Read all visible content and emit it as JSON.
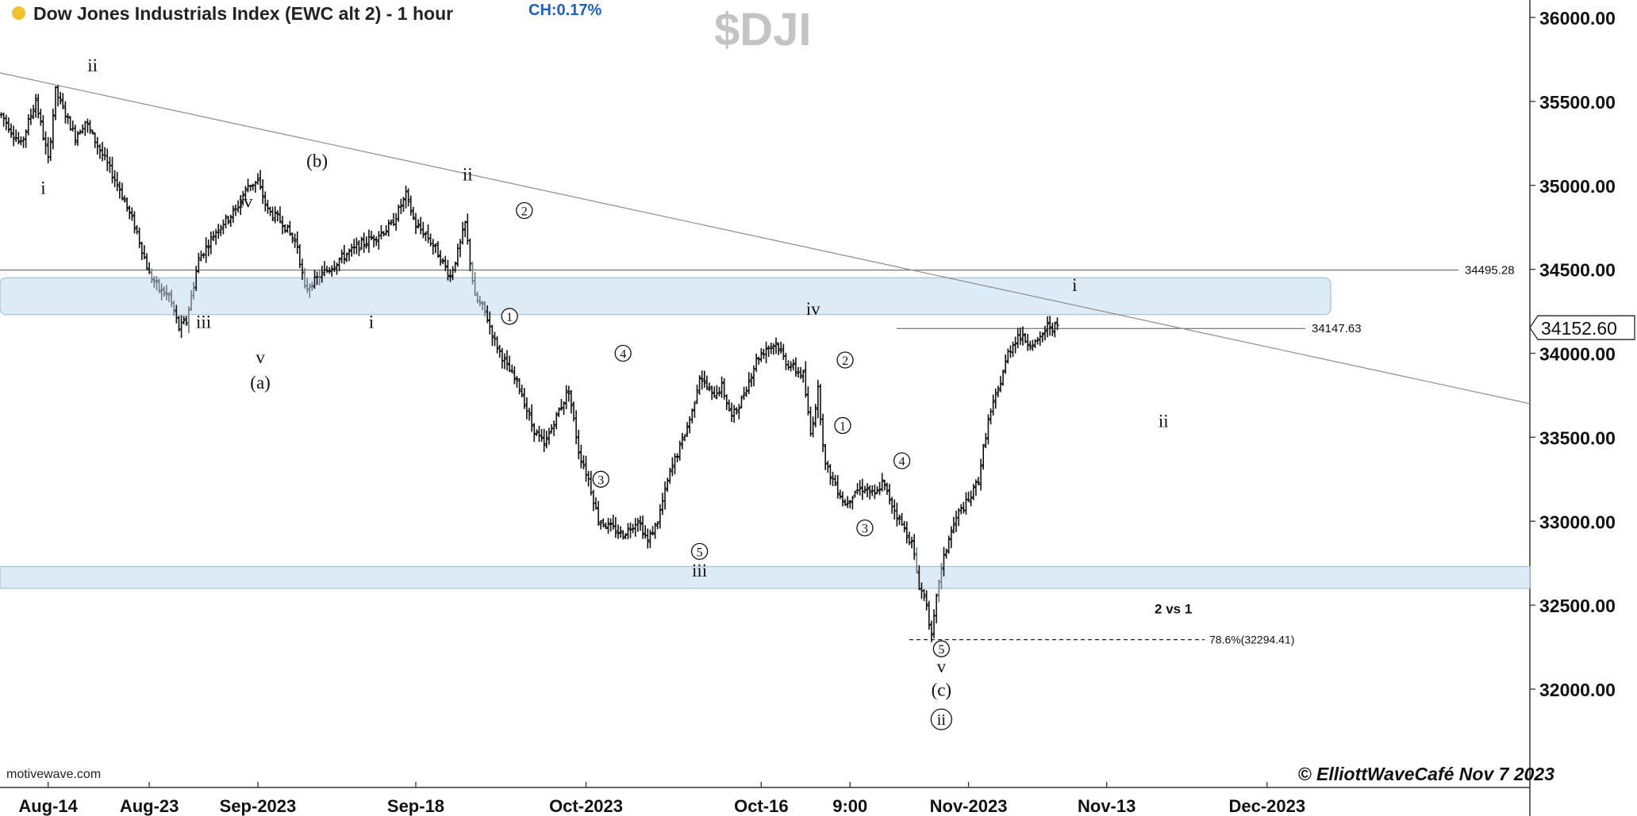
{
  "header": {
    "title": "Dow Jones Industrials Index (EWC alt 2) - 1 hour",
    "change": "CH:0.17%",
    "symbol": "$DJI",
    "source": "motivewave.com",
    "copyright": "© ElliottWaveCafé Nov 7 2023"
  },
  "colors": {
    "bars": "#111111",
    "zone_fill": "#dcebf6",
    "zone_border": "#9fb6c8",
    "trendline": "#8c8c8c",
    "indicator_dot": "#f2c12e",
    "change_text": "#1a5fc4",
    "watermark": "#c4c4c4"
  },
  "chart_data": {
    "type": "ohlc",
    "timeframe": "1 hour",
    "ylim": [
      31400,
      36100
    ],
    "y_ticks": [
      32000,
      32500,
      33000,
      33500,
      34000,
      34500,
      35000,
      35500,
      36000
    ],
    "y_tick_labels": [
      "32000.00",
      "32500.00",
      "33000.00",
      "33500.00",
      "34000.00",
      "34500.00",
      "35000.00",
      "35500.00",
      "36000.00"
    ],
    "x_labels": [
      "Aug-14",
      "Aug-23",
      "Sep-2023",
      "Sep-18",
      "Oct-2023",
      "Oct-16",
      "9:00",
      "Nov-2023",
      "Nov-13",
      "Dec-2023"
    ],
    "x_label_bar_index": [
      19,
      60,
      104,
      168,
      237,
      308,
      344,
      392,
      448,
      513
    ],
    "total_bar_slots": 620,
    "last_price": "34152.60",
    "price_path": [
      [
        0,
        35420
      ],
      [
        8,
        35240
      ],
      [
        14,
        35510
      ],
      [
        19,
        35150
      ],
      [
        22,
        35560
      ],
      [
        30,
        35290
      ],
      [
        34,
        35380
      ],
      [
        40,
        35210
      ],
      [
        48,
        34980
      ],
      [
        55,
        34720
      ],
      [
        60,
        34470
      ],
      [
        64,
        34380
      ],
      [
        68,
        34340
      ],
      [
        72,
        34150
      ],
      [
        75,
        34190
      ],
      [
        80,
        34560
      ],
      [
        88,
        34750
      ],
      [
        95,
        34850
      ],
      [
        100,
        35000
      ],
      [
        104,
        35020
      ],
      [
        108,
        34850
      ],
      [
        114,
        34780
      ],
      [
        120,
        34640
      ],
      [
        123,
        34380
      ],
      [
        130,
        34470
      ],
      [
        138,
        34570
      ],
      [
        146,
        34650
      ],
      [
        152,
        34700
      ],
      [
        158,
        34760
      ],
      [
        164,
        34940
      ],
      [
        168,
        34760
      ],
      [
        172,
        34710
      ],
      [
        176,
        34620
      ],
      [
        182,
        34460
      ],
      [
        186,
        34650
      ],
      [
        188,
        34770
      ],
      [
        192,
        34330
      ],
      [
        196,
        34250
      ],
      [
        200,
        34070
      ],
      [
        205,
        33920
      ],
      [
        210,
        33800
      ],
      [
        215,
        33570
      ],
      [
        220,
        33450
      ],
      [
        226,
        33660
      ],
      [
        230,
        33780
      ],
      [
        234,
        33420
      ],
      [
        238,
        33250
      ],
      [
        242,
        33010
      ],
      [
        247,
        32960
      ],
      [
        252,
        32920
      ],
      [
        258,
        33010
      ],
      [
        262,
        32880
      ],
      [
        266,
        33000
      ],
      [
        271,
        33290
      ],
      [
        276,
        33480
      ],
      [
        280,
        33650
      ],
      [
        283,
        33870
      ],
      [
        288,
        33750
      ],
      [
        292,
        33800
      ],
      [
        296,
        33620
      ],
      [
        300,
        33720
      ],
      [
        306,
        33960
      ],
      [
        310,
        34030
      ],
      [
        314,
        34060
      ],
      [
        318,
        33950
      ],
      [
        322,
        33900
      ],
      [
        325,
        33870
      ],
      [
        328,
        33520
      ],
      [
        331,
        33780
      ],
      [
        334,
        33330
      ],
      [
        338,
        33220
      ],
      [
        342,
        33100
      ],
      [
        346,
        33180
      ],
      [
        350,
        33200
      ],
      [
        354,
        33150
      ],
      [
        357,
        33230
      ],
      [
        361,
        33100
      ],
      [
        365,
        32980
      ],
      [
        369,
        32870
      ],
      [
        372,
        32620
      ],
      [
        375,
        32510
      ],
      [
        377,
        32300
      ],
      [
        380,
        32650
      ],
      [
        384,
        32900
      ],
      [
        388,
        33050
      ],
      [
        392,
        33120
      ],
      [
        396,
        33250
      ],
      [
        400,
        33600
      ],
      [
        404,
        33780
      ],
      [
        408,
        34000
      ],
      [
        412,
        34110
      ],
      [
        416,
        34070
      ],
      [
        420,
        34060
      ],
      [
        424,
        34160
      ],
      [
        428,
        34155
      ]
    ],
    "zones": [
      {
        "from": 34230,
        "to": 34450
      },
      {
        "from": 32600,
        "to": 32730
      }
    ],
    "horizontal_lines": [
      {
        "price": 34495.28,
        "label": "34495.28"
      },
      {
        "price": 34147.63,
        "label": "34147.63"
      }
    ],
    "fib_line": {
      "price": 32294.41,
      "label": "78.6%(32294.41)"
    },
    "trendline": {
      "from": [
        0,
        35670
      ],
      "to": [
        620,
        33700
      ]
    },
    "annotations": [
      {
        "text": "ii",
        "bar": 37,
        "price": 35680,
        "style": "roman"
      },
      {
        "text": "i",
        "bar": 17,
        "price": 34950,
        "style": "roman"
      },
      {
        "text": "iv",
        "bar": 99,
        "price": 34870,
        "style": "roman"
      },
      {
        "text": "iii",
        "bar": 82,
        "price": 34150,
        "style": "roman"
      },
      {
        "text": "v",
        "bar": 105,
        "price": 33940,
        "style": "roman"
      },
      {
        "text": "(a)",
        "bar": 105,
        "price": 33790,
        "style": "roman"
      },
      {
        "text": "(b)",
        "bar": 128,
        "price": 35110,
        "style": "roman"
      },
      {
        "text": "i",
        "bar": 150,
        "price": 34150,
        "style": "roman"
      },
      {
        "text": "ii",
        "bar": 189,
        "price": 35030,
        "style": "roman"
      },
      {
        "text": "2",
        "bar": 212,
        "price": 34850,
        "style": "circle"
      },
      {
        "text": "1",
        "bar": 206,
        "price": 34220,
        "style": "circle"
      },
      {
        "text": "4",
        "bar": 252,
        "price": 34000,
        "style": "circle"
      },
      {
        "text": "3",
        "bar": 243,
        "price": 33250,
        "style": "circle"
      },
      {
        "text": "5",
        "bar": 283,
        "price": 32820,
        "style": "circle"
      },
      {
        "text": "iii",
        "bar": 283,
        "price": 32670,
        "style": "roman"
      },
      {
        "text": "iv",
        "bar": 329,
        "price": 34230,
        "style": "roman"
      },
      {
        "text": "2",
        "bar": 342,
        "price": 33960,
        "style": "circle"
      },
      {
        "text": "1",
        "bar": 341,
        "price": 33570,
        "style": "circle"
      },
      {
        "text": "4",
        "bar": 365,
        "price": 33360,
        "style": "circle"
      },
      {
        "text": "3",
        "bar": 350,
        "price": 32960,
        "style": "circle"
      },
      {
        "text": "5",
        "bar": 381,
        "price": 32240,
        "style": "circle"
      },
      {
        "text": "v",
        "bar": 381,
        "price": 32100,
        "style": "roman"
      },
      {
        "text": "(c)",
        "bar": 381,
        "price": 31960,
        "style": "roman"
      },
      {
        "text": "ii",
        "bar": 381,
        "price": 31820,
        "style": "circle-roman"
      },
      {
        "text": "i",
        "bar": 435,
        "price": 34370,
        "style": "roman"
      },
      {
        "text": "ii",
        "bar": 471,
        "price": 33560,
        "style": "roman"
      },
      {
        "text": "2 vs 1",
        "bar": 475,
        "price": 32450,
        "style": "bold"
      }
    ]
  }
}
